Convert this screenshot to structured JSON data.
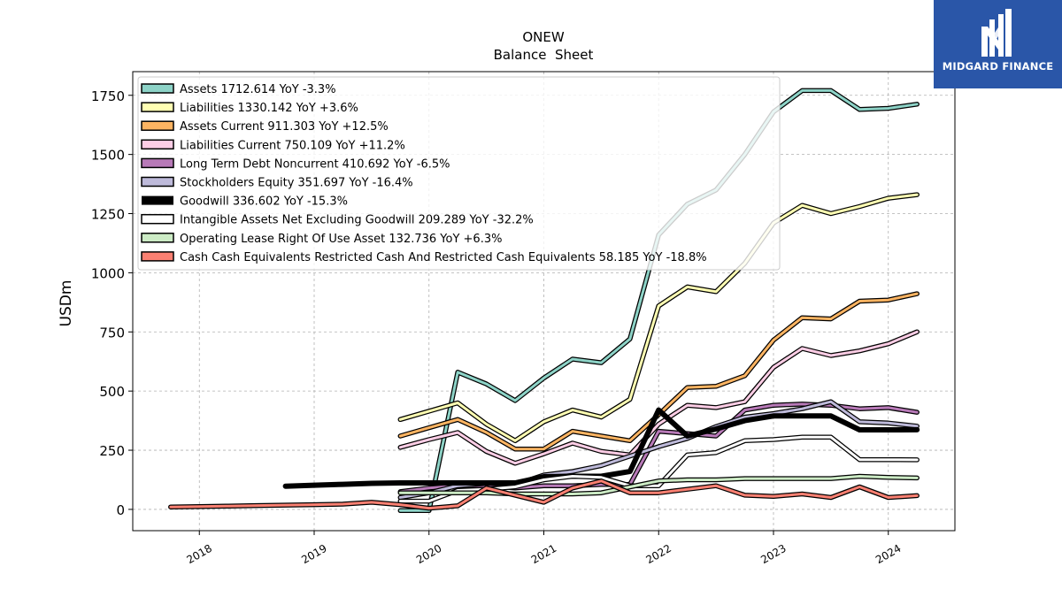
{
  "brand": {
    "name": "MIDGARD FINANCE",
    "bg": "#2a56a8"
  },
  "chart_data": {
    "type": "line",
    "title": "ONEW",
    "subtitle": "Balance  Sheet",
    "ylabel": "USDm",
    "xlabel": "",
    "ylim": [
      -90,
      1850
    ],
    "xlim": [
      2017.42,
      2024.58
    ],
    "yticks": [
      0,
      250,
      500,
      750,
      1000,
      1250,
      1500,
      1750
    ],
    "xticks": [
      "2018",
      "2019",
      "2020",
      "2021",
      "2022",
      "2023",
      "2024"
    ],
    "grid": true,
    "legend_position": "top-left",
    "series": [
      {
        "name": "Assets  1712.614 YoY -3.3%",
        "color": "#8dd3c7",
        "width": 3,
        "x": [
          2019.75,
          2020.0,
          2020.25,
          2020.5,
          2020.75,
          2021.0,
          2021.25,
          2021.5,
          2021.75,
          2022.0,
          2022.25,
          2022.5,
          2022.75,
          2023.0,
          2023.25,
          2023.5,
          2023.75,
          2024.0,
          2024.25
        ],
        "y": [
          -5,
          -5,
          580,
          530,
          460,
          555,
          635,
          620,
          720,
          1160,
          1290,
          1350,
          1500,
          1680,
          1770,
          1770,
          1690,
          1695,
          1712.614
        ]
      },
      {
        "name": "Liabilities  1330.142 YoY +3.6%",
        "color": "#ffffb3",
        "width": 3,
        "x": [
          2019.75,
          2020.0,
          2020.25,
          2020.5,
          2020.75,
          2021.0,
          2021.25,
          2021.5,
          2021.75,
          2022.0,
          2022.25,
          2022.5,
          2022.75,
          2023.0,
          2023.25,
          2023.5,
          2023.75,
          2024.0,
          2024.25
        ],
        "y": [
          380,
          415,
          450,
          360,
          290,
          370,
          420,
          390,
          465,
          860,
          940,
          920,
          1040,
          1210,
          1285,
          1250,
          1280,
          1315,
          1330.142
        ]
      },
      {
        "name": "Assets Current  911.303 YoY +12.5%",
        "color": "#fdb462",
        "width": 3,
        "x": [
          2019.75,
          2020.0,
          2020.25,
          2020.5,
          2020.75,
          2021.0,
          2021.25,
          2021.5,
          2021.75,
          2022.0,
          2022.25,
          2022.5,
          2022.75,
          2023.0,
          2023.25,
          2023.5,
          2023.75,
          2024.0,
          2024.25
        ],
        "y": [
          310,
          345,
          380,
          325,
          255,
          255,
          330,
          310,
          290,
          400,
          515,
          520,
          565,
          715,
          810,
          805,
          880,
          885,
          911.303
        ]
      },
      {
        "name": "Liabilities Current  750.109 YoY +11.2%",
        "color": "#fccde5",
        "width": 3,
        "x": [
          2019.75,
          2020.0,
          2020.25,
          2020.5,
          2020.75,
          2021.0,
          2021.25,
          2021.5,
          2021.75,
          2022.0,
          2022.25,
          2022.5,
          2022.75,
          2023.0,
          2023.25,
          2023.5,
          2023.75,
          2024.0,
          2024.25
        ],
        "y": [
          262,
          295,
          325,
          245,
          195,
          235,
          280,
          245,
          230,
          360,
          440,
          430,
          455,
          600,
          680,
          650,
          670,
          700,
          750.109
        ]
      },
      {
        "name": "Long Term Debt Noncurrent  410.692 YoY -6.5%",
        "color": "#b87ab8",
        "width": 3,
        "x": [
          2019.75,
          2020.0,
          2020.25,
          2020.5,
          2020.75,
          2021.0,
          2021.25,
          2021.5,
          2021.75,
          2022.0,
          2022.25,
          2022.5,
          2022.75,
          2023.0,
          2023.25,
          2023.5,
          2023.75,
          2024.0,
          2024.25
        ],
        "y": [
          75,
          90,
          100,
          100,
          90,
          100,
          100,
          105,
          105,
          330,
          320,
          310,
          420,
          440,
          445,
          440,
          425,
          430,
          410.692
        ]
      },
      {
        "name": "Stockholders Equity  351.697 YoY -16.4%",
        "color": "#bebada",
        "width": 3,
        "x": [
          2019.75,
          2020.0,
          2020.25,
          2020.5,
          2020.75,
          2021.0,
          2021.25,
          2021.5,
          2021.75,
          2022.0,
          2022.25,
          2022.5,
          2022.75,
          2023.0,
          2023.25,
          2023.5,
          2023.75,
          2024.0,
          2024.25
        ],
        "y": [
          50,
          70,
          100,
          110,
          105,
          145,
          160,
          185,
          225,
          265,
          300,
          350,
          390,
          405,
          425,
          455,
          370,
          365,
          351.697
        ]
      },
      {
        "name": "Goodwill  336.602 YoY -15.3%",
        "color": "#000000",
        "width": 6,
        "no_outline": true,
        "x": [
          2018.75,
          2019.0,
          2019.25,
          2019.5,
          2019.75,
          2020.0,
          2020.25,
          2020.5,
          2020.75,
          2021.0,
          2021.25,
          2021.5,
          2021.75,
          2022.0,
          2022.25,
          2022.5,
          2022.75,
          2023.0,
          2023.25,
          2023.5,
          2023.75,
          2024.0,
          2024.25
        ],
        "y": [
          98,
          102,
          106,
          110,
          112,
          112,
          112,
          112,
          112,
          138,
          140,
          140,
          160,
          420,
          310,
          340,
          375,
          395,
          395,
          395,
          336,
          336,
          336.602
        ]
      },
      {
        "name": "Intangible Assets Net Excluding Goodwill  209.289 YoY -32.2%",
        "color": "#ffffff",
        "width": 3,
        "x": [
          2019.75,
          2020.0,
          2020.25,
          2020.5,
          2020.75,
          2021.0,
          2021.25,
          2021.5,
          2021.75,
          2022.0,
          2022.25,
          2022.5,
          2022.75,
          2023.0,
          2023.25,
          2023.5,
          2023.75,
          2024.0,
          2024.25
        ],
        "y": [
          35,
          35,
          80,
          85,
          95,
          125,
          140,
          135,
          100,
          100,
          230,
          240,
          290,
          295,
          305,
          305,
          210,
          210,
          209.289
        ]
      },
      {
        "name": "Operating Lease Right Of Use Asset  132.736 YoY +6.3%",
        "color": "#ccebc5",
        "width": 3,
        "x": [
          2019.75,
          2020.0,
          2020.25,
          2020.5,
          2020.75,
          2021.0,
          2021.25,
          2021.5,
          2021.75,
          2022.0,
          2022.25,
          2022.5,
          2022.75,
          2023.0,
          2023.25,
          2023.5,
          2023.75,
          2024.0,
          2024.25
        ],
        "y": [
          70,
          70,
          70,
          70,
          65,
          65,
          65,
          70,
          95,
          120,
          125,
          125,
          130,
          130,
          130,
          130,
          140,
          135,
          132.736
        ]
      },
      {
        "name": "Cash Cash Equivalents Restricted Cash And Restricted Cash Equivalents  58.185 YoY -18.8%",
        "color": "#fb8072",
        "width": 3,
        "x": [
          2017.75,
          2018.0,
          2018.25,
          2018.5,
          2018.75,
          2019.0,
          2019.25,
          2019.5,
          2019.75,
          2020.0,
          2020.25,
          2020.5,
          2020.75,
          2021.0,
          2021.25,
          2021.5,
          2021.75,
          2022.0,
          2022.25,
          2022.5,
          2022.75,
          2023.0,
          2023.25,
          2023.5,
          2023.75,
          2024.0,
          2024.25
        ],
        "y": [
          10,
          12,
          14,
          16,
          18,
          20,
          22,
          30,
          20,
          5,
          15,
          90,
          60,
          30,
          90,
          120,
          70,
          70,
          85,
          100,
          60,
          55,
          65,
          50,
          95,
          50,
          58.185
        ]
      }
    ]
  }
}
